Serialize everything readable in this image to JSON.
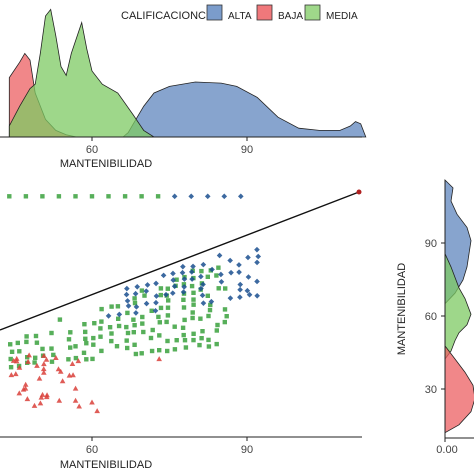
{
  "colors": {
    "ALTA": "#3b64a8",
    "BAJA": "#e8474a",
    "MEDIA": "#6cc04a",
    "ALTA_pt": "#1a4f8f",
    "MEDIA_pt": "#3aa13d",
    "BAJA_pt": "#d9403a"
  },
  "chart_data": [
    {
      "type": "area",
      "subtype": "density",
      "xlabel": "MANTENIBILIDAD",
      "ylabel": "",
      "xticks": [
        "60",
        "90"
      ],
      "xlim": [
        44,
        113
      ],
      "legend_title": "CALIFICACIONC",
      "legend_position": "top",
      "series": [
        {
          "name": "ALTA",
          "x": [
            66,
            67,
            68,
            70,
            72,
            75,
            80,
            85,
            88,
            92,
            96,
            100,
            104,
            108,
            110,
            111,
            112,
            113
          ],
          "y": [
            0,
            2,
            6,
            14,
            20,
            23,
            25,
            24.5,
            23,
            18,
            9,
            4,
            3,
            3,
            5,
            7,
            6,
            0
          ]
        },
        {
          "name": "BAJA",
          "x": [
            44,
            46,
            47,
            48,
            49,
            51,
            53,
            55,
            57
          ],
          "y": [
            27,
            34,
            38,
            35,
            20,
            8,
            3,
            1,
            0
          ]
        },
        {
          "name": "MEDIA",
          "x": [
            44,
            46,
            48,
            49,
            50,
            51,
            52,
            53,
            54,
            55,
            56,
            58,
            59,
            60,
            62,
            65,
            68,
            70,
            72
          ],
          "y": [
            5,
            14,
            22,
            24,
            38,
            55,
            58,
            46,
            32,
            28,
            38,
            52,
            40,
            30,
            24,
            20,
            10,
            3,
            0
          ]
        }
      ]
    },
    {
      "type": "scatter",
      "xlabel": "MANTENIBILIDAD",
      "ylabel": "",
      "xticks": [
        "60",
        "90"
      ],
      "xlim": [
        44,
        113
      ],
      "ylim": [
        0,
        113
      ],
      "trend_line": {
        "x": [
          44,
          112
        ],
        "y": [
          33,
          112
        ]
      },
      "series": [
        {
          "name": "ALTA",
          "shape": "diamond",
          "x_range": [
            62,
            93
          ],
          "y_range": [
            55,
            90
          ]
        },
        {
          "name": "MEDIA",
          "shape": "square",
          "x_range": [
            44,
            86
          ],
          "y_range": [
            30,
            80
          ]
        },
        {
          "name": "BAJA",
          "shape": "triangle",
          "x_range": [
            44,
            73
          ],
          "y_range": [
            10,
            46
          ]
        }
      ]
    },
    {
      "type": "area",
      "subtype": "density",
      "orientation": "horizontal",
      "ylabel": "MANTENIBILIDAD",
      "yticks": [
        "30",
        "60",
        "90"
      ],
      "xticks": [
        "0.00"
      ],
      "ylim": [
        15,
        113
      ],
      "series": [
        {
          "name": "ALTA"
        },
        {
          "name": "MEDIA"
        },
        {
          "name": "BAJA"
        }
      ]
    }
  ]
}
